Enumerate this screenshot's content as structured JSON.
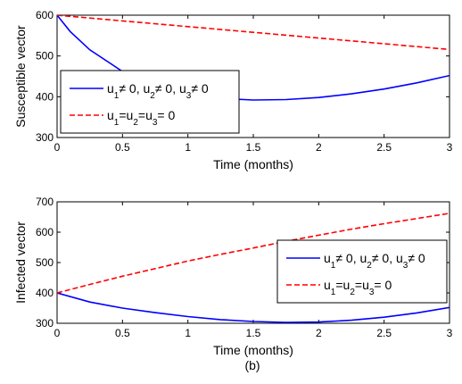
{
  "caption": "(b)",
  "chart_data": [
    {
      "type": "line",
      "title": "",
      "xlabel": "Time (months)",
      "ylabel": "Susceptible vector",
      "xlim": [
        0,
        3
      ],
      "ylim": [
        300,
        600
      ],
      "xticks": [
        0,
        0.5,
        1,
        1.5,
        2,
        2.5,
        3
      ],
      "xtick_labels": [
        "0",
        "0.5",
        "1",
        "1.5",
        "2",
        "2.5",
        "3"
      ],
      "yticks": [
        300,
        400,
        500,
        600
      ],
      "ytick_labels": [
        "300",
        "400",
        "500",
        "600"
      ],
      "grid": false,
      "legend_position": "lower-left",
      "series": [
        {
          "legend": {
            "p1": "u",
            "s1": "1",
            "p2": "≠ 0, u",
            "s2": "2",
            "p3": "≠ 0, u",
            "s3": "3",
            "p4": "≠ 0"
          },
          "color": "#0000ff",
          "style": "solid",
          "x": [
            0,
            0.1,
            0.25,
            0.5,
            0.75,
            1,
            1.25,
            1.5,
            1.75,
            2,
            2.25,
            2.5,
            2.75,
            3
          ],
          "y": [
            600,
            560,
            515,
            462,
            428,
            408,
            396,
            392,
            393,
            398,
            407,
            419,
            434,
            452
          ]
        },
        {
          "legend": {
            "p1": "u",
            "s1": "1",
            "p2": "=u",
            "s2": "2",
            "p3": "=u",
            "s3": "3",
            "p4": "= 0"
          },
          "color": "#ff0000",
          "style": "dashed",
          "x": [
            0,
            0.5,
            1,
            1.5,
            2,
            2.5,
            3
          ],
          "y": [
            600,
            586,
            572,
            558,
            544,
            530,
            516
          ]
        }
      ]
    },
    {
      "type": "line",
      "title": "",
      "xlabel": "Time (months)",
      "ylabel": "Infected vector",
      "xlim": [
        0,
        3
      ],
      "ylim": [
        300,
        700
      ],
      "xticks": [
        0,
        0.5,
        1,
        1.5,
        2,
        2.5,
        3
      ],
      "xtick_labels": [
        "0",
        "0.5",
        "1",
        "1.5",
        "2",
        "2.5",
        "3"
      ],
      "yticks": [
        300,
        400,
        500,
        600,
        700
      ],
      "ytick_labels": [
        "300",
        "400",
        "500",
        "600",
        "700"
      ],
      "grid": false,
      "legend_position": "right",
      "series": [
        {
          "legend": {
            "p1": "u",
            "s1": "1",
            "p2": "≠ 0, u",
            "s2": "2",
            "p3": "≠ 0, u",
            "s3": "3",
            "p4": "≠ 0"
          },
          "color": "#0000ff",
          "style": "solid",
          "x": [
            0,
            0.25,
            0.5,
            0.75,
            1,
            1.25,
            1.5,
            1.75,
            2,
            2.25,
            2.5,
            2.75,
            3
          ],
          "y": [
            400,
            370,
            350,
            335,
            322,
            312,
            306,
            303,
            304,
            310,
            320,
            334,
            352
          ]
        },
        {
          "legend": {
            "p1": "u",
            "s1": "1",
            "p2": "=u",
            "s2": "2",
            "p3": "=u",
            "s3": "3",
            "p4": "= 0"
          },
          "color": "#ff0000",
          "style": "dashed",
          "x": [
            0,
            0.25,
            0.5,
            0.75,
            1,
            1.25,
            1.5,
            1.75,
            2,
            2.25,
            2.5,
            2.75,
            3
          ],
          "y": [
            400,
            428,
            455,
            480,
            505,
            527,
            548,
            570,
            590,
            610,
            628,
            645,
            662
          ]
        }
      ]
    }
  ]
}
